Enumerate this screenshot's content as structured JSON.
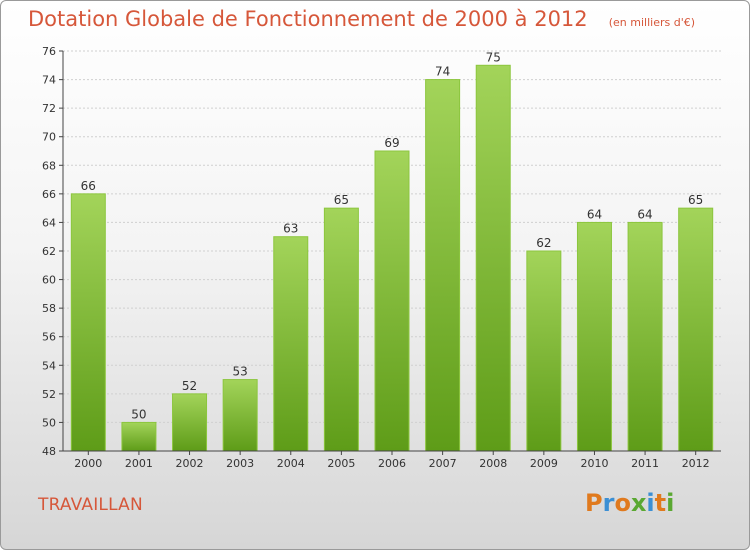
{
  "title": "Dotation Globale de Fonctionnement de 2000 à 2012",
  "unit_note": "(en milliers d'€)",
  "commune": "TRAVAILLAN",
  "logo": {
    "text": "Proxiti",
    "letters": [
      "P",
      "r",
      "o",
      "x",
      "i",
      "t",
      "i"
    ],
    "colors": [
      "#e07a1e",
      "#3b8fd4",
      "#e07a1e",
      "#5aa832",
      "#3b8fd4",
      "#e07a1e",
      "#5aa832"
    ]
  },
  "colors": {
    "title": "#d6573a",
    "bar_top": "#a3d45a",
    "bar_bottom": "#5e9c18",
    "axis": "#444444"
  },
  "chart_data": {
    "type": "bar",
    "categories": [
      "2000",
      "2001",
      "2002",
      "2003",
      "2004",
      "2005",
      "2006",
      "2007",
      "2008",
      "2009",
      "2010",
      "2011",
      "2012"
    ],
    "values": [
      66,
      50,
      52,
      53,
      63,
      65,
      69,
      74,
      75,
      62,
      64,
      64,
      65
    ],
    "title": "Dotation Globale de Fonctionnement de 2000 à 2012",
    "ylim": [
      48,
      76
    ],
    "yticks": [
      48,
      50,
      52,
      54,
      56,
      58,
      60,
      62,
      64,
      66,
      68,
      70,
      72,
      74,
      76
    ],
    "grid": true,
    "data_labels": true
  }
}
